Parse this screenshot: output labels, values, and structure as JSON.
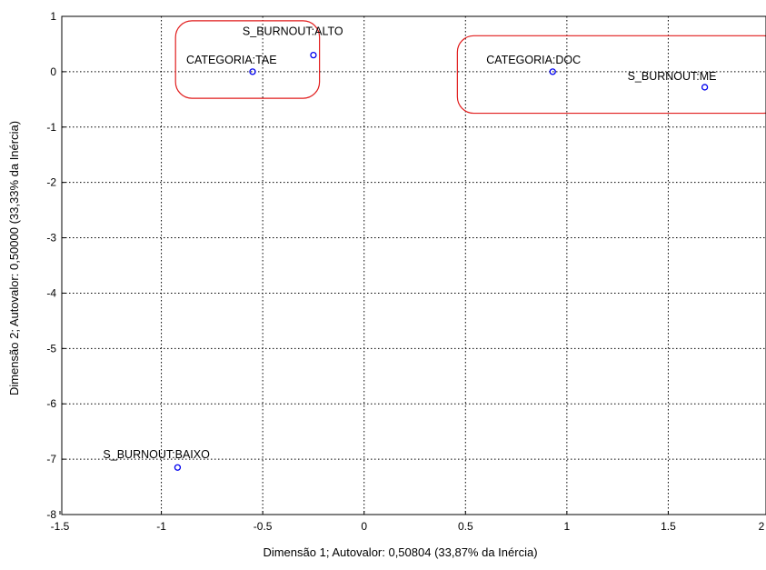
{
  "chart_data": {
    "type": "scatter",
    "title": "",
    "xlabel": "Dimensão 1; Autovalor: 0,50804 (33,87% da Inércia)",
    "ylabel": "Dimensão 2; Autovalor: 0,50000 (33,33% da Inércia)",
    "xlim": [
      -1.5,
      2
    ],
    "ylim": [
      -8,
      1
    ],
    "xticks": [
      -1.5,
      -1,
      -0.5,
      0,
      0.5,
      1,
      1.5,
      2
    ],
    "xtick_labels": [
      "-1.5",
      "-1",
      "-0.5",
      "0",
      "0.5",
      "1",
      "1.5",
      "2"
    ],
    "yticks": [
      1,
      0,
      -1,
      -2,
      -3,
      -4,
      -5,
      -6,
      -7,
      -8
    ],
    "ytick_labels": [
      "1",
      "0",
      "-1",
      "-2",
      "-3",
      "-4",
      "-5",
      "-6",
      "-7",
      "-8"
    ],
    "grid": true,
    "points": [
      {
        "label": "S_BURNOUT:ALTO",
        "x": -0.25,
        "y": 0.3
      },
      {
        "label": "CATEGORIA:TAE",
        "x": -0.55,
        "y": 0.0
      },
      {
        "label": "CATEGORIA:DOC",
        "x": 0.93,
        "y": 0.0
      },
      {
        "label": "S_BURNOUT:ME",
        "x": 1.68,
        "y": -0.28
      },
      {
        "label": "S_BURNOUT:BAIXO",
        "x": -0.92,
        "y": -7.15
      }
    ],
    "annotations": [
      {
        "shape": "rounded-rect",
        "color": "#e11d1d",
        "x_range": [
          -0.93,
          -0.22
        ],
        "y_range": [
          -0.48,
          0.92
        ]
      },
      {
        "shape": "rounded-rect",
        "color": "#e11d1d",
        "x_range": [
          0.46,
          2.05
        ],
        "y_range": [
          -0.75,
          0.65
        ]
      }
    ],
    "marker_color": "#0000ee",
    "gridline_color": "#000000"
  }
}
